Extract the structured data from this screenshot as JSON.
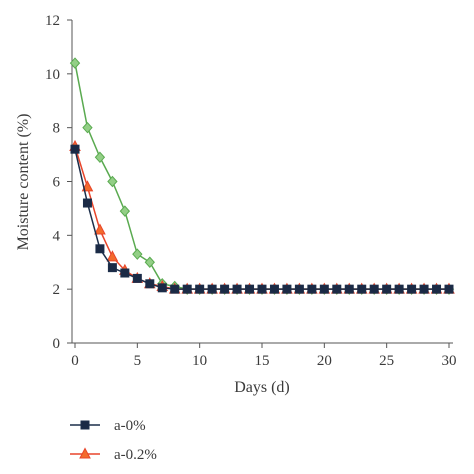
{
  "chart_data": {
    "type": "line",
    "xlabel": "Days (d)",
    "ylabel": "Moisture content (%)",
    "xlim": [
      0,
      30
    ],
    "ylim": [
      0,
      12
    ],
    "xticks": [
      0,
      5,
      10,
      15,
      20,
      25,
      30
    ],
    "yticks": [
      0,
      2,
      4,
      6,
      8,
      10,
      12
    ],
    "grid": false,
    "legend_position": "bottom-left",
    "series": [
      {
        "name": "",
        "color": "#5aaa50",
        "fill": "#93cf86",
        "marker": "diamond",
        "x": [
          0,
          1,
          2,
          3,
          4,
          5,
          6,
          7,
          8,
          9,
          10,
          11,
          12,
          13,
          14,
          15,
          16,
          17,
          18,
          19,
          20,
          21,
          22,
          23,
          24,
          25,
          26,
          27,
          28,
          29,
          30
        ],
        "values": [
          10.4,
          8.0,
          6.9,
          6.0,
          4.9,
          3.3,
          3.0,
          2.2,
          2.1,
          2.0,
          2.0,
          2.0,
          2.0,
          2.0,
          2.0,
          2.0,
          2.0,
          2.0,
          2.0,
          2.0,
          2.0,
          2.0,
          2.0,
          2.0,
          2.0,
          2.0,
          2.0,
          2.0,
          2.0,
          2.0,
          2.0
        ]
      },
      {
        "name": "a-0.2%",
        "color": "#e8452b",
        "fill": "#f36b2d",
        "marker": "triangle",
        "x": [
          0,
          1,
          2,
          3,
          4,
          5,
          6,
          7,
          8,
          9,
          10,
          11,
          12,
          13,
          14,
          15,
          16,
          17,
          18,
          19,
          20,
          21,
          22,
          23,
          24,
          25,
          26,
          27,
          28,
          29,
          30
        ],
        "values": [
          7.3,
          5.8,
          4.2,
          3.2,
          2.7,
          2.4,
          2.2,
          2.1,
          2.0,
          2.0,
          2.0,
          2.0,
          2.0,
          2.0,
          2.0,
          2.0,
          2.0,
          2.0,
          2.0,
          2.0,
          2.0,
          2.0,
          2.0,
          2.0,
          2.0,
          2.0,
          2.0,
          2.0,
          2.0,
          2.0,
          2.0
        ]
      },
      {
        "name": "a-0%",
        "color": "#1c2e4a",
        "fill": "#1b2a45",
        "marker": "square",
        "x": [
          0,
          1,
          2,
          3,
          4,
          5,
          6,
          7,
          8,
          9,
          10,
          11,
          12,
          13,
          14,
          15,
          16,
          17,
          18,
          19,
          20,
          21,
          22,
          23,
          24,
          25,
          26,
          27,
          28,
          29,
          30
        ],
        "values": [
          7.2,
          5.2,
          3.5,
          2.8,
          2.6,
          2.4,
          2.2,
          2.05,
          2.0,
          2.0,
          2.0,
          2.0,
          2.0,
          2.0,
          2.0,
          2.0,
          2.0,
          2.0,
          2.0,
          2.0,
          2.0,
          2.0,
          2.0,
          2.0,
          2.0,
          2.0,
          2.0,
          2.0,
          2.0,
          2.0,
          2.0
        ]
      }
    ],
    "legend": [
      {
        "label": "a-0%",
        "series": 2
      },
      {
        "label": "a-0.2%",
        "series": 1
      }
    ]
  }
}
